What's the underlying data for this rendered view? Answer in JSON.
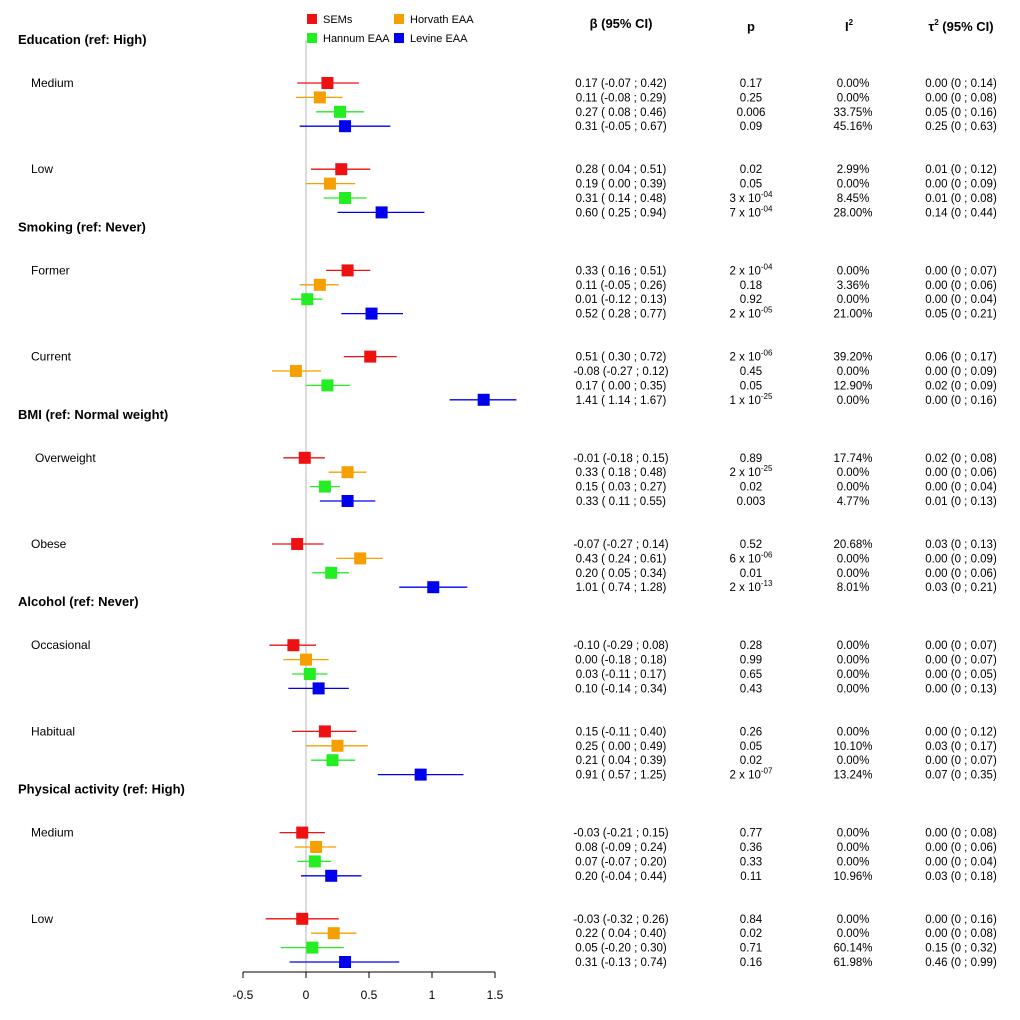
{
  "chart_data": {
    "type": "forest",
    "x_axis": {
      "ticks": [
        -0.5,
        0,
        0.5,
        1,
        1.5
      ],
      "tick_labels": [
        "-0.5",
        "0",
        "0.5",
        "1",
        "1.5"
      ],
      "xlim": [
        -0.5,
        1.5
      ],
      "reference_line": 0
    },
    "legend": [
      {
        "name": "SEMs",
        "color": "#ee1111"
      },
      {
        "name": "Horvath EAA",
        "color": "#f5a000"
      },
      {
        "name": "Hannum EAA",
        "color": "#22ee22"
      },
      {
        "name": "Levine EAA",
        "color": "#0000ee"
      }
    ],
    "columns": [
      "β (95% CI)",
      "p",
      "I",
      "τ",
      "(95% CI)"
    ],
    "column_superscripts": {
      "I": "2",
      "τ": "2"
    },
    "sections": [
      {
        "title": "Education (ref: High)",
        "groups": [
          {
            "label": "Medium",
            "rows": [
              {
                "series": "SEMs",
                "est": 0.17,
                "lo": -0.07,
                "hi": 0.42,
                "ci_text": "0.17 (-0.07 ; 0.42)",
                "p": "0.17",
                "p_exp": "",
                "i2": "0.00%",
                "tau2": "0.00 (0 ; 0.14)"
              },
              {
                "series": "Horvath EAA",
                "est": 0.11,
                "lo": -0.08,
                "hi": 0.29,
                "ci_text": "0.11 (-0.08 ; 0.29)",
                "p": "0.25",
                "p_exp": "",
                "i2": "0.00%",
                "tau2": "0.00 (0 ; 0.08)"
              },
              {
                "series": "Hannum EAA",
                "est": 0.27,
                "lo": 0.08,
                "hi": 0.46,
                "ci_text": "0.27 ( 0.08 ; 0.46)",
                "p": "0.006",
                "p_exp": "",
                "i2": "33.75%",
                "tau2": "0.05 (0 ; 0.16)"
              },
              {
                "series": "Levine EAA",
                "est": 0.31,
                "lo": -0.05,
                "hi": 0.67,
                "ci_text": "0.31 (-0.05 ; 0.67)",
                "p": "0.09",
                "p_exp": "",
                "i2": "45.16%",
                "tau2": "0.25 (0 ; 0.63)"
              }
            ]
          },
          {
            "label": "Low",
            "rows": [
              {
                "series": "SEMs",
                "est": 0.28,
                "lo": 0.04,
                "hi": 0.51,
                "ci_text": "0.28 ( 0.04 ; 0.51)",
                "p": "0.02",
                "p_exp": "",
                "i2": "2.99%",
                "tau2": "0.01 (0 ; 0.12)"
              },
              {
                "series": "Horvath EAA",
                "est": 0.19,
                "lo": 0.0,
                "hi": 0.39,
                "ci_text": "0.19 ( 0.00 ; 0.39)",
                "p": "0.05",
                "p_exp": "",
                "i2": "0.00%",
                "tau2": "0.00 (0 ; 0.09)"
              },
              {
                "series": "Hannum EAA",
                "est": 0.31,
                "lo": 0.14,
                "hi": 0.48,
                "ci_text": "0.31 ( 0.14 ; 0.48)",
                "p": "3 x 10",
                "p_exp": "-04",
                "i2": "8.45%",
                "tau2": "0.01 (0 ; 0.08)"
              },
              {
                "series": "Levine EAA",
                "est": 0.6,
                "lo": 0.25,
                "hi": 0.94,
                "ci_text": "0.60 ( 0.25 ; 0.94)",
                "p": "7 x 10",
                "p_exp": "-04",
                "i2": "28.00%",
                "tau2": "0.14 (0 ; 0.44)"
              }
            ]
          }
        ]
      },
      {
        "title": "Smoking (ref: Never)",
        "groups": [
          {
            "label": "Former",
            "rows": [
              {
                "series": "SEMs",
                "est": 0.33,
                "lo": 0.16,
                "hi": 0.51,
                "ci_text": "0.33 ( 0.16 ; 0.51)",
                "p": "2 x 10",
                "p_exp": "-04",
                "i2": "0.00%",
                "tau2": "0.00 (0 ; 0.07)"
              },
              {
                "series": "Horvath EAA",
                "est": 0.11,
                "lo": -0.05,
                "hi": 0.26,
                "ci_text": "0.11 (-0.05 ; 0.26)",
                "p": "0.18",
                "p_exp": "",
                "i2": "3.36%",
                "tau2": "0.00 (0 ; 0.06)"
              },
              {
                "series": "Hannum EAA",
                "est": 0.01,
                "lo": -0.12,
                "hi": 0.13,
                "ci_text": "0.01 (-0.12 ; 0.13)",
                "p": "0.92",
                "p_exp": "",
                "i2": "0.00%",
                "tau2": "0.00 (0 ; 0.04)"
              },
              {
                "series": "Levine EAA",
                "est": 0.52,
                "lo": 0.28,
                "hi": 0.77,
                "ci_text": "0.52 ( 0.28 ; 0.77)",
                "p": "2 x 10",
                "p_exp": "-05",
                "i2": "21.00%",
                "tau2": "0.05 (0 ; 0.21)"
              }
            ]
          },
          {
            "label": "Current",
            "rows": [
              {
                "series": "SEMs",
                "est": 0.51,
                "lo": 0.3,
                "hi": 0.72,
                "ci_text": "0.51 ( 0.30 ; 0.72)",
                "p": "2 x 10",
                "p_exp": "-06",
                "i2": "39.20%",
                "tau2": "0.06 (0 ; 0.17)"
              },
              {
                "series": "Horvath EAA",
                "est": -0.08,
                "lo": -0.27,
                "hi": 0.12,
                "ci_text": "-0.08 (-0.27 ; 0.12)",
                "p": "0.45",
                "p_exp": "",
                "i2": "0.00%",
                "tau2": "0.00 (0 ; 0.09)"
              },
              {
                "series": "Hannum EAA",
                "est": 0.17,
                "lo": 0.0,
                "hi": 0.35,
                "ci_text": "0.17 ( 0.00 ; 0.35)",
                "p": "0.05",
                "p_exp": "",
                "i2": "12.90%",
                "tau2": "0.02 (0 ; 0.09)"
              },
              {
                "series": "Levine EAA",
                "est": 1.41,
                "lo": 1.14,
                "hi": 1.67,
                "ci_text": "1.41 ( 1.14 ; 1.67)",
                "p": "1 x 10",
                "p_exp": "-25",
                "i2": "0.00%",
                "tau2": "0.00 (0 ; 0.16)"
              }
            ]
          }
        ]
      },
      {
        "title": "BMI (ref: Normal weight)",
        "groups": [
          {
            "label": "Overweight",
            "rows": [
              {
                "series": "SEMs",
                "est": -0.01,
                "lo": -0.18,
                "hi": 0.15,
                "ci_text": "-0.01 (-0.18 ; 0.15)",
                "p": "0.89",
                "p_exp": "",
                "i2": "17.74%",
                "tau2": "0.02 (0 ; 0.08)"
              },
              {
                "series": "Horvath EAA",
                "est": 0.33,
                "lo": 0.18,
                "hi": 0.48,
                "ci_text": "0.33 ( 0.18 ; 0.48)",
                "p": "2 x 10",
                "p_exp": "-25",
                "i2": "0.00%",
                "tau2": "0.00 (0 ; 0.06)"
              },
              {
                "series": "Hannum EAA",
                "est": 0.15,
                "lo": 0.03,
                "hi": 0.27,
                "ci_text": "0.15 ( 0.03 ; 0.27)",
                "p": "0.02",
                "p_exp": "",
                "i2": "0.00%",
                "tau2": "0.00 (0 ; 0.04)"
              },
              {
                "series": "Levine EAA",
                "est": 0.33,
                "lo": 0.11,
                "hi": 0.55,
                "ci_text": "0.33 ( 0.11 ; 0.55)",
                "p": "0.003",
                "p_exp": "",
                "i2": "4.77%",
                "tau2": "0.01 (0 ; 0.13)"
              }
            ]
          },
          {
            "label": "Obese",
            "rows": [
              {
                "series": "SEMs",
                "est": -0.07,
                "lo": -0.27,
                "hi": 0.14,
                "ci_text": "-0.07 (-0.27 ; 0.14)",
                "p": "0.52",
                "p_exp": "",
                "i2": "20.68%",
                "tau2": "0.03 (0 ; 0.13)"
              },
              {
                "series": "Horvath EAA",
                "est": 0.43,
                "lo": 0.24,
                "hi": 0.61,
                "ci_text": "0.43 ( 0.24 ; 0.61)",
                "p": "6 x 10",
                "p_exp": "-06",
                "i2": "0.00%",
                "tau2": "0.00 (0 ; 0.09)"
              },
              {
                "series": "Hannum EAA",
                "est": 0.2,
                "lo": 0.05,
                "hi": 0.34,
                "ci_text": "0.20 ( 0.05 ; 0.34)",
                "p": "0.01",
                "p_exp": "",
                "i2": "0.00%",
                "tau2": "0.00 (0 ; 0.06)"
              },
              {
                "series": "Levine EAA",
                "est": 1.01,
                "lo": 0.74,
                "hi": 1.28,
                "ci_text": "1.01 ( 0.74 ; 1.28)",
                "p": "2 x 10",
                "p_exp": "-13",
                "i2": "8.01%",
                "tau2": "0.03 (0 ; 0.21)"
              }
            ]
          }
        ]
      },
      {
        "title": "Alcohol (ref: Never)",
        "groups": [
          {
            "label": "Occasional",
            "rows": [
              {
                "series": "SEMs",
                "est": -0.1,
                "lo": -0.29,
                "hi": 0.08,
                "ci_text": "-0.10 (-0.29 ; 0.08)",
                "p": "0.28",
                "p_exp": "",
                "i2": "0.00%",
                "tau2": "0.00 (0 ; 0.07)"
              },
              {
                "series": "Horvath EAA",
                "est": 0.0,
                "lo": -0.18,
                "hi": 0.18,
                "ci_text": "0.00 (-0.18 ; 0.18)",
                "p": "0.99",
                "p_exp": "",
                "i2": "0.00%",
                "tau2": "0.00 (0 ; 0.07)"
              },
              {
                "series": "Hannum EAA",
                "est": 0.03,
                "lo": -0.11,
                "hi": 0.17,
                "ci_text": "0.03 (-0.11 ; 0.17)",
                "p": "0.65",
                "p_exp": "",
                "i2": "0.00%",
                "tau2": "0.00 (0 ; 0.05)"
              },
              {
                "series": "Levine EAA",
                "est": 0.1,
                "lo": -0.14,
                "hi": 0.34,
                "ci_text": "0.10 (-0.14 ; 0.34)",
                "p": "0.43",
                "p_exp": "",
                "i2": "0.00%",
                "tau2": "0.00 (0 ; 0.13)"
              }
            ]
          },
          {
            "label": "Habitual",
            "rows": [
              {
                "series": "SEMs",
                "est": 0.15,
                "lo": -0.11,
                "hi": 0.4,
                "ci_text": "0.15 (-0.11 ; 0.40)",
                "p": "0.26",
                "p_exp": "",
                "i2": "0.00%",
                "tau2": "0.00 (0 ; 0.12)"
              },
              {
                "series": "Horvath EAA",
                "est": 0.25,
                "lo": 0.0,
                "hi": 0.49,
                "ci_text": "0.25 ( 0.00 ; 0.49)",
                "p": "0.05",
                "p_exp": "",
                "i2": "10.10%",
                "tau2": "0.03 (0 ; 0.17)"
              },
              {
                "series": "Hannum EAA",
                "est": 0.21,
                "lo": 0.04,
                "hi": 0.39,
                "ci_text": "0.21 ( 0.04 ; 0.39)",
                "p": "0.02",
                "p_exp": "",
                "i2": "0.00%",
                "tau2": "0.00 (0 ; 0.07)"
              },
              {
                "series": "Levine EAA",
                "est": 0.91,
                "lo": 0.57,
                "hi": 1.25,
                "ci_text": "0.91 ( 0.57 ; 1.25)",
                "p": "2 x 10",
                "p_exp": "-07",
                "i2": "13.24%",
                "tau2": "0.07 (0 ; 0.35)"
              }
            ]
          }
        ]
      },
      {
        "title": "Physical activity (ref: High)",
        "groups": [
          {
            "label": "Medium",
            "rows": [
              {
                "series": "SEMs",
                "est": -0.03,
                "lo": -0.21,
                "hi": 0.15,
                "ci_text": "-0.03 (-0.21 ; 0.15)",
                "p": "0.77",
                "p_exp": "",
                "i2": "0.00%",
                "tau2": "0.00 (0 ; 0.08)"
              },
              {
                "series": "Horvath EAA",
                "est": 0.08,
                "lo": -0.09,
                "hi": 0.24,
                "ci_text": "0.08 (-0.09 ; 0.24)",
                "p": "0.36",
                "p_exp": "",
                "i2": "0.00%",
                "tau2": "0.00 (0 ; 0.06)"
              },
              {
                "series": "Hannum EAA",
                "est": 0.07,
                "lo": -0.07,
                "hi": 0.2,
                "ci_text": "0.07 (-0.07 ; 0.20)",
                "p": "0.33",
                "p_exp": "",
                "i2": "0.00%",
                "tau2": "0.00 (0 ; 0.04)"
              },
              {
                "series": "Levine EAA",
                "est": 0.2,
                "lo": -0.04,
                "hi": 0.44,
                "ci_text": "0.20 (-0.04 ; 0.44)",
                "p": "0.11",
                "p_exp": "",
                "i2": "10.96%",
                "tau2": "0.03 (0 ; 0.18)"
              }
            ]
          },
          {
            "label": "Low",
            "rows": [
              {
                "series": "SEMs",
                "est": -0.03,
                "lo": -0.32,
                "hi": 0.26,
                "ci_text": "-0.03 (-0.32 ; 0.26)",
                "p": "0.84",
                "p_exp": "",
                "i2": "0.00%",
                "tau2": "0.00 (0 ; 0.16)"
              },
              {
                "series": "Horvath EAA",
                "est": 0.22,
                "lo": 0.04,
                "hi": 0.4,
                "ci_text": "0.22 ( 0.04 ; 0.40)",
                "p": "0.02",
                "p_exp": "",
                "i2": "0.00%",
                "tau2": "0.00 (0 ; 0.08)"
              },
              {
                "series": "Hannum EAA",
                "est": 0.05,
                "lo": -0.2,
                "hi": 0.3,
                "ci_text": "0.05 (-0.20 ; 0.30)",
                "p": "0.71",
                "p_exp": "",
                "i2": "60.14%",
                "tau2": "0.15 (0 ; 0.32)"
              },
              {
                "series": "Levine EAA",
                "est": 0.31,
                "lo": -0.13,
                "hi": 0.74,
                "ci_text": "0.31 (-0.13 ; 0.74)",
                "p": "0.16",
                "p_exp": "",
                "i2": "61.98%",
                "tau2": "0.46 (0 ; 0.99)"
              }
            ]
          }
        ]
      }
    ]
  }
}
